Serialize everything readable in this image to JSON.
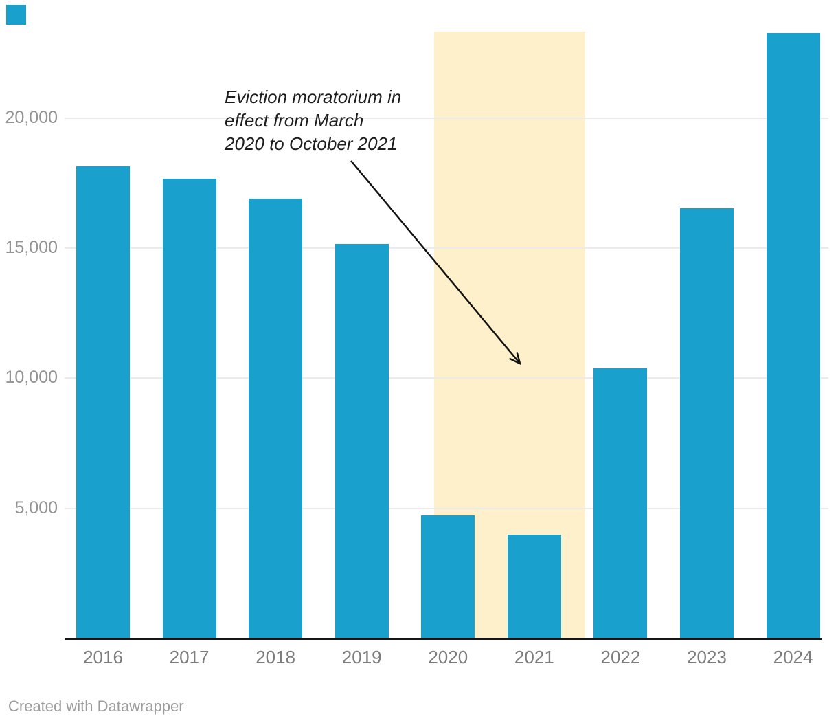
{
  "chart_data": {
    "type": "bar",
    "categories": [
      "2016",
      "2017",
      "2018",
      "2019",
      "2020",
      "2021",
      "2022",
      "2023",
      "2024"
    ],
    "values": [
      18150,
      17670,
      16900,
      15160,
      4730,
      4000,
      10380,
      16530,
      23280
    ],
    "title": "",
    "xlabel": "",
    "ylabel": "",
    "ylim": [
      0,
      23300
    ],
    "grid": true,
    "legend_position": "none",
    "yticks": [
      {
        "value": 5000,
        "label": "5,000"
      },
      {
        "value": 10000,
        "label": "10,000"
      },
      {
        "value": 15000,
        "label": "15,000"
      },
      {
        "value": 20000,
        "label": "20,000"
      }
    ],
    "highlight_band": {
      "covers_categories": [
        "2020",
        "2021"
      ],
      "color": "#FDF0CB"
    }
  },
  "annotation": {
    "text": "Eviction moratorium in effect from March 2020 to October 2021",
    "lines": [
      "Eviction moratorium in",
      "effect from March",
      "2020 to October 2021"
    ]
  },
  "footer": {
    "text": "Created with Datawrapper"
  },
  "colors": {
    "bar": "#1AA0CD",
    "highlight": "#FDF0CB",
    "gridline": "#EBEBEB",
    "axis": "#161616",
    "ytick_text": "#939393",
    "xtick_text": "#7C7C7C",
    "annotation_text": "#1D1D1D",
    "footer_text": "#9C9C9C",
    "arrow": "#111111"
  }
}
